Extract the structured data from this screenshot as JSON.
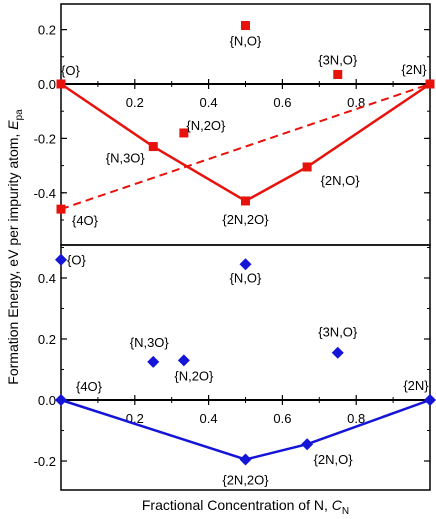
{
  "chart_data": [
    {
      "type": "scatter",
      "xlabel": "Fractional Concentration of N, C_N",
      "ylabel": "Formation Energy, eV per impurity atom, E_pa",
      "xlim": [
        0,
        1
      ],
      "ylim": [
        -0.55,
        0.3
      ],
      "yticks": [
        0.2,
        0.0,
        -0.2,
        -0.4
      ],
      "xticks": [
        0.2,
        0.4,
        0.6,
        0.8
      ],
      "marker": "square",
      "color": "#e8120c",
      "series": [
        {
          "points": [
            {
              "x": 0.0,
              "y": 0.0,
              "label": "{O}"
            },
            {
              "x": 0.5,
              "y": 0.215,
              "label": "{N,O}"
            },
            {
              "x": 0.75,
              "y": 0.035,
              "label": "{3N,O}"
            },
            {
              "x": 1.0,
              "y": 0.0,
              "label": "{2N}"
            },
            {
              "x": 0.25,
              "y": -0.23,
              "label": "{N,3O}"
            },
            {
              "x": 0.333,
              "y": -0.18,
              "label": "{N,2O}"
            },
            {
              "x": 0.5,
              "y": -0.43,
              "label": "{2N,2O}"
            },
            {
              "x": 0.667,
              "y": -0.305,
              "label": "{2N,O}"
            },
            {
              "x": 0.0,
              "y": -0.46,
              "label": "{4O}"
            }
          ]
        }
      ],
      "hull": {
        "x": [
          0.0,
          0.25,
          0.5,
          0.667,
          1.0
        ],
        "y": [
          0.0,
          -0.23,
          -0.43,
          -0.305,
          0.0
        ]
      },
      "dashed_line": {
        "x": [
          0.0,
          1.0
        ],
        "y": [
          -0.46,
          0.0
        ]
      }
    },
    {
      "type": "scatter",
      "xlabel": "Fractional Concentration of N, C_N",
      "ylabel": "Formation Energy, eV per impurity atom, E_pa",
      "xlim": [
        0,
        1
      ],
      "ylim": [
        -0.25,
        0.5
      ],
      "yticks": [
        0.4,
        0.2,
        0.0,
        -0.2
      ],
      "xticks": [
        0.2,
        0.4,
        0.6,
        0.8
      ],
      "marker": "diamond",
      "color": "#1515d8",
      "series": [
        {
          "points": [
            {
              "x": 0.0,
              "y": 0.46,
              "label": "{O}"
            },
            {
              "x": 0.5,
              "y": 0.445,
              "label": "{N,O}"
            },
            {
              "x": 0.25,
              "y": 0.125,
              "label": "{N,3O}"
            },
            {
              "x": 0.333,
              "y": 0.13,
              "label": "{N,2O}"
            },
            {
              "x": 0.75,
              "y": 0.155,
              "label": "{3N,O}"
            },
            {
              "x": 0.0,
              "y": 0.0,
              "label": "{4O}"
            },
            {
              "x": 1.0,
              "y": 0.0,
              "label": "{2N}"
            },
            {
              "x": 0.5,
              "y": -0.195,
              "label": "{2N,2O}"
            },
            {
              "x": 0.667,
              "y": -0.145,
              "label": "{2N,O}"
            }
          ]
        }
      ],
      "hull": {
        "x": [
          0.0,
          0.5,
          0.667,
          1.0
        ],
        "y": [
          0.0,
          -0.195,
          -0.145,
          0.0
        ]
      }
    }
  ],
  "labels": {
    "xlabel_main": "Fractional Concentration of N, ",
    "xlabel_var": "C",
    "xlabel_sub": "N",
    "ylabel_main": "Formation Energy, eV per impurity atom, ",
    "ylabel_var": "E",
    "ylabel_sub": "pa"
  }
}
